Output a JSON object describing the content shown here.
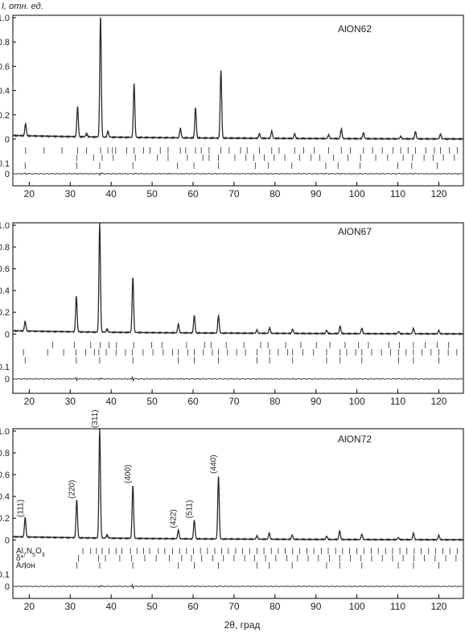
{
  "y_axis_title": "I, отн. ед.",
  "x_axis_title": "2θ, град",
  "colors": {
    "pattern": "#2a2a2a",
    "ticks": "#444444",
    "frame": "#000000"
  },
  "chart_data": [
    {
      "type": "line",
      "title": "AlON62",
      "xlim": [
        16,
        126
      ],
      "x_ticks": [
        20,
        30,
        40,
        50,
        60,
        70,
        80,
        90,
        100,
        110,
        120
      ],
      "y_ticks": [
        "1.0",
        "0.8",
        "0.6",
        "0.4",
        "0.2",
        "0"
      ],
      "diff_ticks": [
        "0.1",
        "0"
      ],
      "baseline": 0.02,
      "peaks": [
        {
          "x": 19.1,
          "y": 0.1
        },
        {
          "x": 31.8,
          "y": 0.25
        },
        {
          "x": 34.0,
          "y": 0.03
        },
        {
          "x": 37.4,
          "y": 1.0
        },
        {
          "x": 39.2,
          "y": 0.05
        },
        {
          "x": 45.6,
          "y": 0.44
        },
        {
          "x": 56.9,
          "y": 0.08
        },
        {
          "x": 60.6,
          "y": 0.25
        },
        {
          "x": 66.8,
          "y": 0.56
        },
        {
          "x": 76.2,
          "y": 0.04
        },
        {
          "x": 79.2,
          "y": 0.06
        },
        {
          "x": 84.8,
          "y": 0.04
        },
        {
          "x": 93.1,
          "y": 0.03
        },
        {
          "x": 96.2,
          "y": 0.08
        },
        {
          "x": 101.6,
          "y": 0.05
        },
        {
          "x": 110.7,
          "y": 0.02
        },
        {
          "x": 114.3,
          "y": 0.06
        },
        {
          "x": 120.4,
          "y": 0.04
        }
      ],
      "reflection_rows": [
        [
          19.1,
          23.6,
          28.0,
          31.8,
          34.0,
          37.4,
          39.2,
          40.3,
          41.1,
          43.8,
          45.6,
          47.9,
          49.5,
          52.0,
          53.9,
          56.9,
          58.2,
          60.6,
          62.0,
          63.9,
          66.8,
          68.8,
          71.6,
          73.2,
          76.2,
          79.2,
          81.0,
          84.8,
          87.0,
          89.6,
          93.1,
          96.2,
          98.4,
          101.6,
          103.8,
          106.2,
          108.8,
          110.7,
          112.5,
          114.3,
          116.8,
          118.9,
          120.4,
          122.6,
          124.5
        ],
        [
          31.6,
          35.7,
          37.8,
          40.5,
          45.9,
          51.3,
          53.9,
          58.6,
          62.4,
          63.9,
          66.2,
          70.2,
          72.9,
          74.8,
          77.4,
          79.8,
          82.4,
          86.0,
          88.8,
          90.9,
          94.3,
          97.8,
          100.9,
          104.6,
          107.5,
          111.3,
          113.6,
          116.4,
          118.6,
          121.1,
          123.8
        ],
        [
          19.0,
          31.6,
          37.2,
          45.3,
          56.2,
          60.2,
          66.2,
          75.2,
          78.4,
          84.1,
          92.4,
          95.4,
          100.8,
          110.0,
          113.4,
          119.6
        ]
      ]
    },
    {
      "type": "line",
      "title": "AlON67",
      "xlim": [
        16,
        126
      ],
      "x_ticks": [
        20,
        30,
        40,
        50,
        60,
        70,
        80,
        90,
        100,
        110,
        120
      ],
      "y_ticks": [
        "1.0",
        "0.8",
        "0.6",
        "0.4",
        "0.2",
        "0"
      ],
      "diff_ticks": [
        "0.1",
        "0"
      ],
      "baseline": 0.02,
      "peaks": [
        {
          "x": 19.0,
          "y": 0.09
        },
        {
          "x": 31.5,
          "y": 0.33
        },
        {
          "x": 37.2,
          "y": 1.0
        },
        {
          "x": 39.0,
          "y": 0.03
        },
        {
          "x": 45.3,
          "y": 0.51
        },
        {
          "x": 56.4,
          "y": 0.08
        },
        {
          "x": 60.3,
          "y": 0.16
        },
        {
          "x": 66.2,
          "y": 0.16
        },
        {
          "x": 75.6,
          "y": 0.03
        },
        {
          "x": 78.7,
          "y": 0.05
        },
        {
          "x": 84.3,
          "y": 0.04
        },
        {
          "x": 92.6,
          "y": 0.03
        },
        {
          "x": 95.9,
          "y": 0.07
        },
        {
          "x": 101.2,
          "y": 0.05
        },
        {
          "x": 110.2,
          "y": 0.02
        },
        {
          "x": 113.8,
          "y": 0.05
        },
        {
          "x": 120.0,
          "y": 0.03
        }
      ],
      "reflection_rows": [
        [
          25.7,
          31.0,
          35.0,
          37.3,
          39.5,
          41.3,
          45.5,
          49.9,
          52.4,
          58.4,
          62.8,
          64.4,
          68.1,
          72.4,
          76.5,
          78.3,
          82.6,
          86.3,
          90.1,
          93.4,
          97.1,
          100.4,
          102.8,
          107.8,
          110.4,
          113.8,
          116.7,
          119.6,
          122.4
        ],
        [
          18.6,
          24.5,
          28.4,
          31.4,
          33.8,
          35.9,
          37.0,
          38.8,
          41.2,
          43.5,
          45.2,
          47.8,
          50.2,
          52.7,
          55.0,
          56.4,
          58.7,
          60.3,
          62.5,
          64.7,
          66.2,
          68.4,
          70.6,
          72.8,
          75.6,
          78.7,
          80.8,
          83.1,
          84.3,
          86.8,
          89.4,
          92.6,
          95.9,
          97.5,
          99.7,
          101.2,
          103.6,
          106.0,
          108.2,
          110.2,
          112.0,
          113.8,
          115.9,
          118.1,
          120.0,
          122.3,
          124.4
        ],
        [
          19.0,
          31.5,
          37.2,
          45.3,
          56.4,
          60.3,
          66.2,
          75.6,
          78.7,
          84.3,
          92.6,
          95.9,
          101.2,
          110.2,
          113.8,
          120.0
        ]
      ]
    },
    {
      "type": "line",
      "title": "AlON72",
      "xlim": [
        16,
        126
      ],
      "x_ticks": [
        20,
        30,
        40,
        50,
        60,
        70,
        80,
        90,
        100,
        110,
        120
      ],
      "y_ticks": [
        "1.0",
        "0.8",
        "0.6",
        "0.4",
        "0.2",
        "0"
      ],
      "diff_ticks": [
        "0.1",
        "0"
      ],
      "baseline": 0.02,
      "peaks": [
        {
          "x": 19.0,
          "y": 0.18,
          "label": "(111)"
        },
        {
          "x": 31.6,
          "y": 0.35,
          "label": "(220)"
        },
        {
          "x": 37.2,
          "y": 1.0,
          "label": "(311)"
        },
        {
          "x": 39.0,
          "y": 0.03
        },
        {
          "x": 45.3,
          "y": 0.49,
          "label": "(400)"
        },
        {
          "x": 56.4,
          "y": 0.08,
          "label": "(422)"
        },
        {
          "x": 60.3,
          "y": 0.17,
          "label": "(511)"
        },
        {
          "x": 66.2,
          "y": 0.58,
          "label": "(440)"
        },
        {
          "x": 75.6,
          "y": 0.03
        },
        {
          "x": 78.6,
          "y": 0.06
        },
        {
          "x": 84.2,
          "y": 0.04
        },
        {
          "x": 92.6,
          "y": 0.03
        },
        {
          "x": 95.8,
          "y": 0.08
        },
        {
          "x": 101.2,
          "y": 0.05
        },
        {
          "x": 110.1,
          "y": 0.02
        },
        {
          "x": 113.8,
          "y": 0.06
        },
        {
          "x": 120.0,
          "y": 0.04
        }
      ],
      "reflection_rows": [
        [
          33.1,
          35.0,
          36.4,
          37.8,
          39.5,
          41.2,
          42.6,
          44.7,
          46.3,
          47.9,
          49.4,
          51.5,
          53.1,
          55.0,
          56.7,
          58.4,
          60.1,
          61.8,
          63.5,
          65.3,
          67.0,
          68.6,
          70.4,
          72.1,
          73.8,
          75.6,
          77.3,
          79.1,
          80.8,
          82.5,
          84.3,
          86.0,
          87.8,
          89.5,
          91.3,
          93.0,
          94.8,
          96.5,
          98.2,
          100.0,
          101.7,
          103.5,
          105.2,
          107.0,
          108.7,
          110.5,
          112.2,
          114.0,
          115.7,
          117.5,
          119.2,
          121.0,
          122.7,
          124.5
        ],
        [
          32.0,
          36.9,
          38.6,
          42.1,
          45.0,
          48.2,
          51.0,
          54.2,
          57.2,
          59.6,
          62.1,
          64.8,
          67.4,
          70.0,
          72.6,
          75.0,
          77.7,
          80.2,
          82.9,
          85.5,
          88.1,
          90.6,
          93.3,
          95.8,
          98.4,
          101.0,
          103.6,
          106.2,
          108.7,
          111.3,
          113.9,
          116.5,
          119.1,
          121.7,
          124.2
        ],
        [
          19.0,
          31.6,
          37.2,
          45.3,
          56.4,
          60.3,
          66.2,
          75.6,
          78.6,
          84.2,
          92.6,
          95.8,
          101.2,
          110.1,
          113.8,
          120.0
        ]
      ],
      "phase_labels": [
        "Al7N5O3",
        "δ*",
        "Алон"
      ]
    }
  ]
}
